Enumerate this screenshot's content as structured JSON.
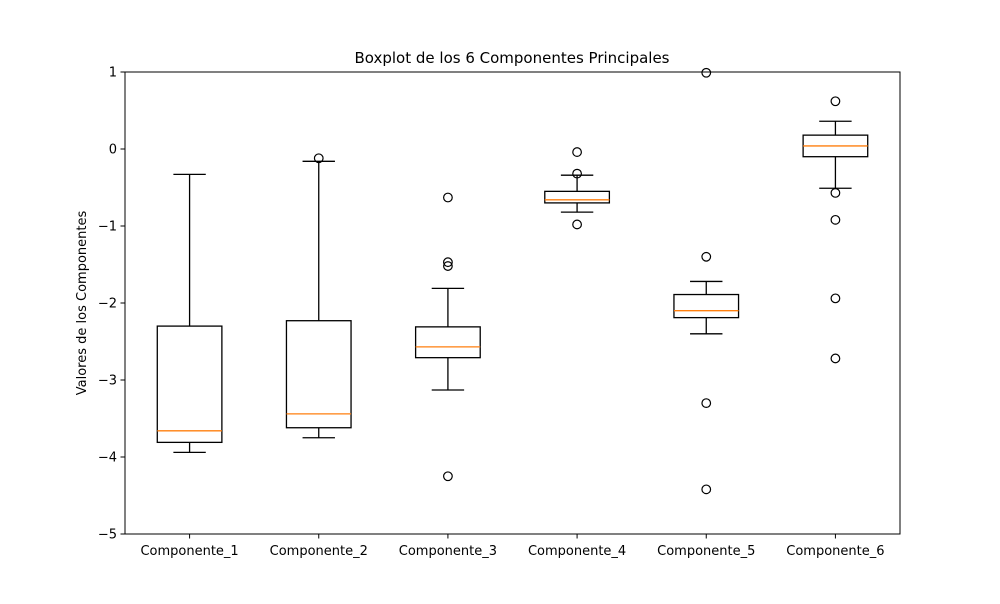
{
  "chart_data": {
    "type": "box",
    "title": "Boxplot de los 6 Componentes Principales",
    "xlabel": "",
    "ylabel": "Valores de los Componentes",
    "ylim": [
      -5,
      1
    ],
    "yticks": [
      1,
      0,
      -1,
      -2,
      -3,
      -4,
      -5
    ],
    "ytick_labels": [
      "1",
      "0",
      "−1",
      "−2",
      "−3",
      "−4",
      "−5"
    ],
    "grid": false,
    "colors": {
      "box": "#000000",
      "median": "#ff7f0e",
      "frame": "#000000"
    },
    "categories": [
      "Componente_1",
      "Componente_2",
      "Componente_3",
      "Componente_4",
      "Componente_5",
      "Componente_6"
    ],
    "boxes": [
      {
        "whisker_low": -3.94,
        "q1": -3.81,
        "median": -3.66,
        "q3": -2.3,
        "whisker_high": -0.33,
        "outliers": []
      },
      {
        "whisker_low": -3.75,
        "q1": -3.62,
        "median": -3.44,
        "q3": -2.23,
        "whisker_high": -0.16,
        "outliers": [
          -0.12
        ]
      },
      {
        "whisker_low": -3.13,
        "q1": -2.71,
        "median": -2.57,
        "q3": -2.31,
        "whisker_high": -1.81,
        "outliers": [
          -0.63,
          -1.47,
          -1.52,
          -4.25
        ]
      },
      {
        "whisker_low": -0.82,
        "q1": -0.7,
        "median": -0.66,
        "q3": -0.55,
        "whisker_high": -0.34,
        "outliers": [
          -0.04,
          -0.32,
          -0.98
        ]
      },
      {
        "whisker_low": -2.4,
        "q1": -2.19,
        "median": -2.1,
        "q3": -1.89,
        "whisker_high": -1.72,
        "outliers": [
          0.99,
          -1.4,
          -3.3,
          -4.42
        ]
      },
      {
        "whisker_low": -0.51,
        "q1": -0.1,
        "median": 0.04,
        "q3": 0.18,
        "whisker_high": 0.36,
        "outliers": [
          0.62,
          -0.57,
          -0.92,
          -1.94,
          -2.72
        ]
      }
    ]
  }
}
